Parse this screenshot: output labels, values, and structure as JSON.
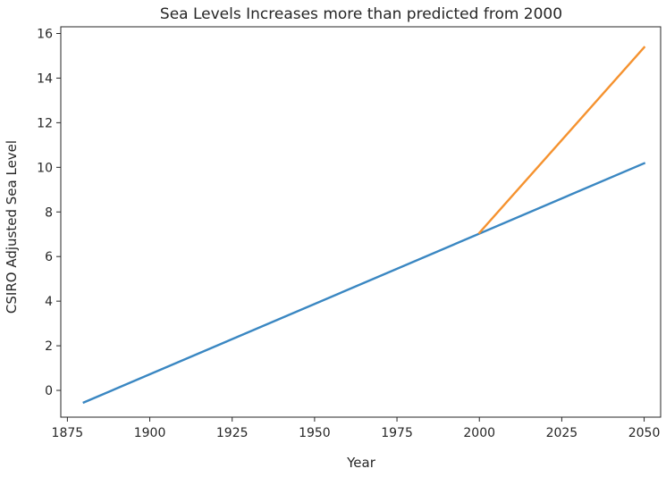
{
  "chart_data": {
    "type": "line",
    "title": "Sea Levels Increases more than predicted from 2000",
    "xlabel": "Year",
    "ylabel": "CSIRO Adjusted Sea Level",
    "xlim": [
      1873,
      2055
    ],
    "ylim": [
      -1.2,
      16.3
    ],
    "xticks": [
      1875,
      1900,
      1925,
      1950,
      1975,
      2000,
      2025,
      2050
    ],
    "yticks": [
      0,
      2,
      4,
      6,
      8,
      10,
      12,
      14,
      16
    ],
    "grid": false,
    "legend": "none",
    "series": [
      {
        "color": "#3a87c2",
        "x": [
          1880,
          2050
        ],
        "y": [
          -0.54,
          10.18
        ]
      },
      {
        "color": "#f5922f",
        "x": [
          2000,
          2050
        ],
        "y": [
          7.06,
          15.38
        ]
      }
    ]
  }
}
